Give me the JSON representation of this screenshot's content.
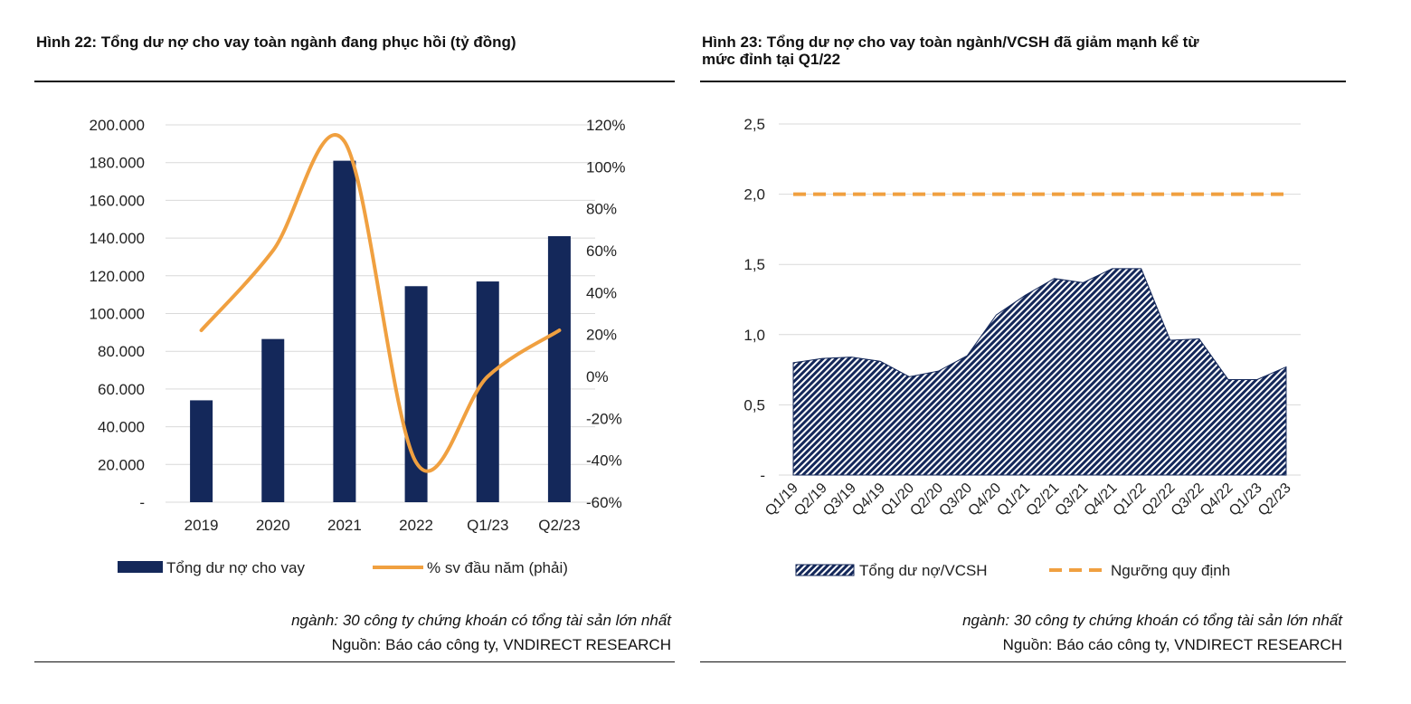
{
  "left": {
    "title": "Hình 22: Tổng dư nợ cho vay toàn ngành đang phục hồi (tỷ đồng)",
    "note_italic": "ngành: 30 công ty chứng khoán có tổng tài sản lớn nhất",
    "note_source": "Nguồn: Báo cáo công ty, VNDIRECT RESEARCH"
  },
  "right": {
    "title_line1": "Hình 23: Tổng dư nợ cho vay toàn ngành/VCSH đã giảm mạnh kể từ",
    "title_line2": "mức đỉnh tại Q1/22",
    "note_italic": "ngành: 30 công ty chứng khoán có tổng tài sản lớn nhất",
    "note_source": "Nguồn: Báo cáo công ty, VNDIRECT RESEARCH"
  },
  "chart_data": [
    {
      "type": "bar",
      "categories": [
        "2019",
        "2020",
        "2021",
        "2022",
        "Q1/23",
        "Q2/23"
      ],
      "series": [
        {
          "name": "Tổng dư nợ cho vay",
          "type": "bar",
          "axis": "left",
          "color": "#14285a",
          "values": [
            54000,
            86500,
            181000,
            114500,
            117000,
            141000
          ]
        },
        {
          "name": "% sv đầu năm (phải)",
          "type": "line",
          "axis": "right",
          "color": "#f0a040",
          "values": [
            22,
            60,
            112,
            -41,
            0,
            22
          ]
        }
      ],
      "y_left": {
        "min": 0,
        "max": 200000,
        "ticks": [
          "-",
          "20.000",
          "40.000",
          "60.000",
          "80.000",
          "100.000",
          "120.000",
          "140.000",
          "160.000",
          "180.000",
          "200.000"
        ]
      },
      "y_right": {
        "min": -60,
        "max": 120,
        "ticks": [
          "-60%",
          "-40%",
          "-20%",
          "0%",
          "20%",
          "40%",
          "60%",
          "80%",
          "100%",
          "120%"
        ]
      },
      "grid": true,
      "legend_position": "bottom"
    },
    {
      "type": "area",
      "categories": [
        "Q1/19",
        "Q2/19",
        "Q3/19",
        "Q4/19",
        "Q1/20",
        "Q2/20",
        "Q3/20",
        "Q4/20",
        "Q1/21",
        "Q2/21",
        "Q3/21",
        "Q4/21",
        "Q1/22",
        "Q2/22",
        "Q3/22",
        "Q4/22",
        "Q1/23",
        "Q2/23"
      ],
      "series": [
        {
          "name": "Tổng dư nợ/VCSH",
          "type": "area",
          "color": "#14285a",
          "values": [
            0.8,
            0.83,
            0.84,
            0.81,
            0.7,
            0.74,
            0.85,
            1.14,
            1.28,
            1.4,
            1.37,
            1.47,
            1.47,
            0.96,
            0.97,
            0.68,
            0.68,
            0.77
          ]
        },
        {
          "name": "Ngưỡng quy định",
          "type": "line-dashed",
          "color": "#f0a040",
          "values": [
            2.0,
            2.0,
            2.0,
            2.0,
            2.0,
            2.0,
            2.0,
            2.0,
            2.0,
            2.0,
            2.0,
            2.0,
            2.0,
            2.0,
            2.0,
            2.0,
            2.0,
            2.0
          ]
        }
      ],
      "y": {
        "min": 0,
        "max": 2.5,
        "ticks": [
          "-",
          "0,5",
          "1,0",
          "1,5",
          "2,0",
          "2,5"
        ]
      },
      "grid": true,
      "legend_position": "bottom"
    }
  ]
}
